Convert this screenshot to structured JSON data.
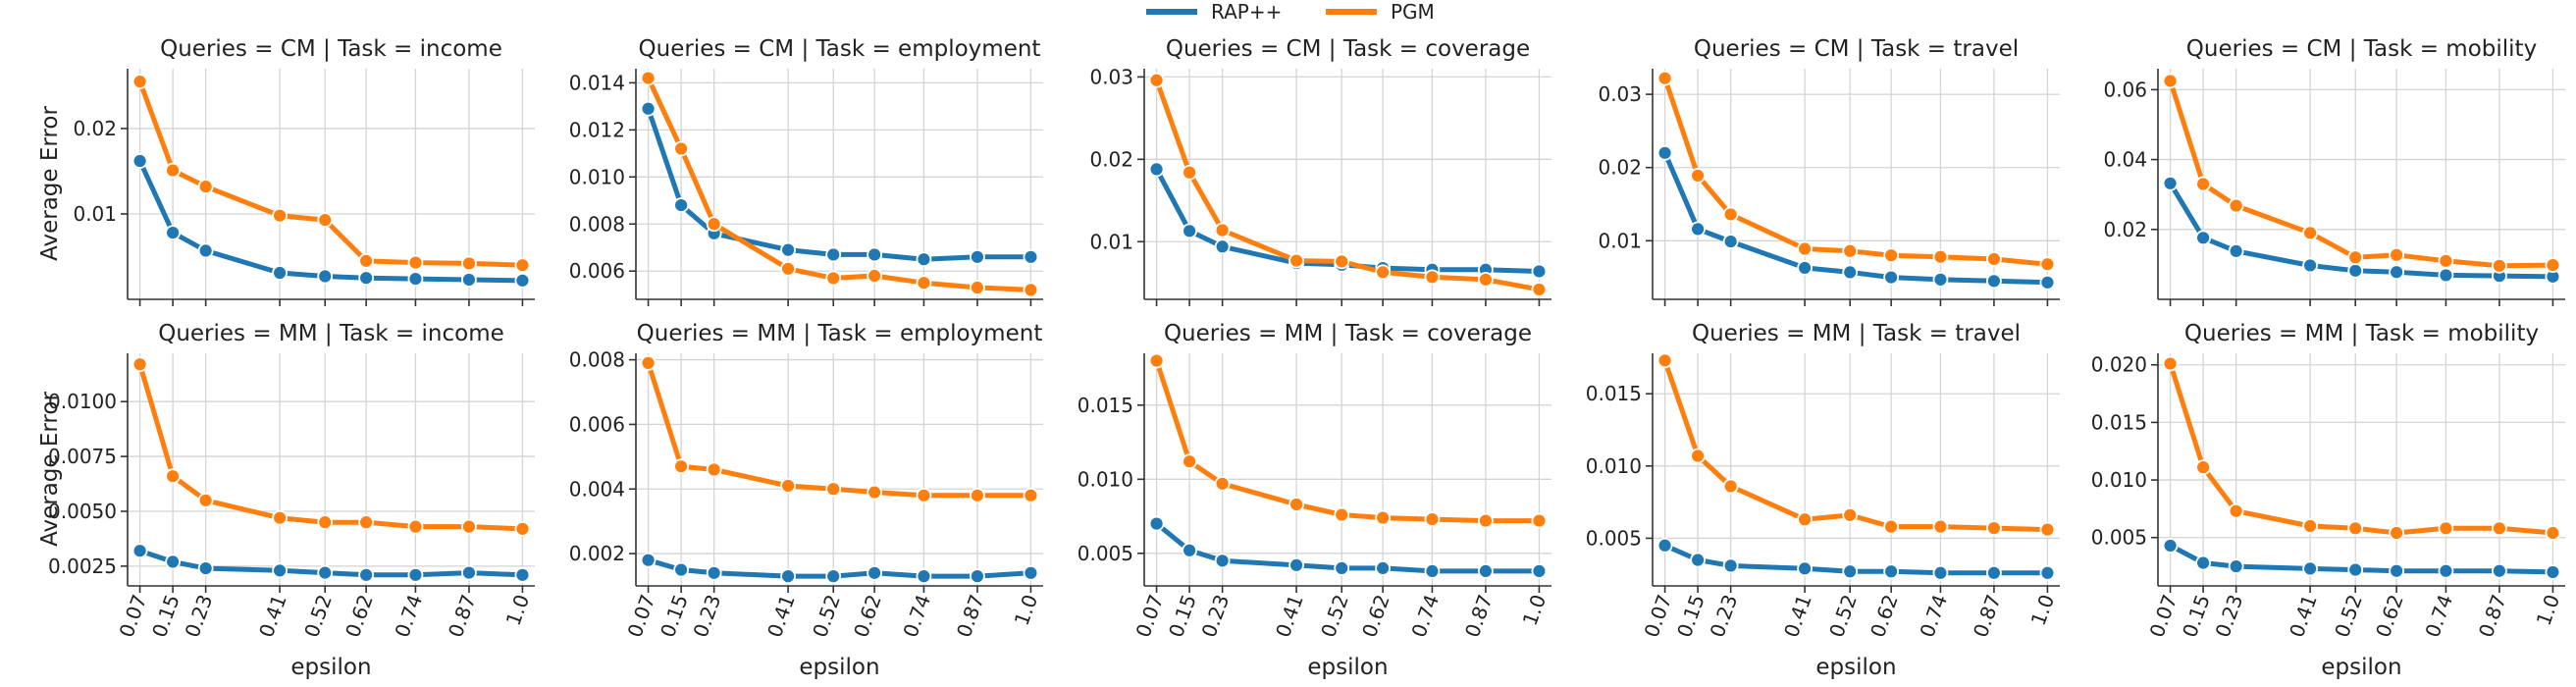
{
  "chart_data": {
    "type": "line",
    "legend": {
      "placement": "top-center",
      "entries": [
        {
          "name": "RAP++",
          "color": "#1f77b4"
        },
        {
          "name": "PGM",
          "color": "#ff7f0e"
        }
      ]
    },
    "x": [
      0.07,
      0.15,
      0.23,
      0.41,
      0.52,
      0.62,
      0.74,
      0.87,
      1.0
    ],
    "xtick_labels": [
      "0.07",
      "0.15",
      "0.23",
      "0.41",
      "0.52",
      "0.62",
      "0.74",
      "0.87",
      "1.0"
    ],
    "xlabel": "epsilon",
    "ylabel": "Average Error",
    "grid": true,
    "panels": [
      {
        "title": "Queries = CM | Task = income",
        "ylim": [
          0,
          0.027
        ],
        "yticks": [
          0.01,
          0.02
        ],
        "ytick_labels": [
          "0.01",
          "0.02"
        ],
        "series": [
          {
            "name": "RAP++",
            "values": [
              0.0162,
              0.0078,
              0.0057,
              0.0031,
              0.0027,
              0.0025,
              0.0024,
              0.0023,
              0.0022
            ]
          },
          {
            "name": "PGM",
            "values": [
              0.0255,
              0.0151,
              0.0132,
              0.0098,
              0.0093,
              0.0045,
              0.0043,
              0.0042,
              0.004
            ]
          }
        ]
      },
      {
        "title": "Queries = CM | Task = employment",
        "ylim": [
          0.0048,
          0.0146
        ],
        "yticks": [
          0.006,
          0.008,
          0.01,
          0.012,
          0.014
        ],
        "ytick_labels": [
          "0.006",
          "0.008",
          "0.010",
          "0.012",
          "0.014"
        ],
        "series": [
          {
            "name": "RAP++",
            "values": [
              0.0129,
              0.0088,
              0.0076,
              0.0069,
              0.0067,
              0.0067,
              0.0065,
              0.0066,
              0.0066
            ]
          },
          {
            "name": "PGM",
            "values": [
              0.0142,
              0.0112,
              0.008,
              0.0061,
              0.0057,
              0.0058,
              0.0055,
              0.0053,
              0.0052
            ]
          }
        ]
      },
      {
        "title": "Queries = CM | Task = coverage",
        "ylim": [
          0.003,
          0.031
        ],
        "yticks": [
          0.01,
          0.02,
          0.03
        ],
        "ytick_labels": [
          "0.01",
          "0.02",
          "0.03"
        ],
        "series": [
          {
            "name": "RAP++",
            "values": [
              0.0188,
              0.0113,
              0.0094,
              0.0074,
              0.0072,
              0.0068,
              0.0066,
              0.0066,
              0.0064
            ]
          },
          {
            "name": "PGM",
            "values": [
              0.0296,
              0.0184,
              0.0114,
              0.0077,
              0.0076,
              0.0063,
              0.0057,
              0.0054,
              0.0042
            ]
          }
        ]
      },
      {
        "title": "Queries = CM | Task = travel",
        "ylim": [
          0.002,
          0.0335
        ],
        "yticks": [
          0.01,
          0.02,
          0.03
        ],
        "ytick_labels": [
          "0.01",
          "0.02",
          "0.03"
        ],
        "series": [
          {
            "name": "RAP++",
            "values": [
              0.022,
              0.0116,
              0.0099,
              0.0063,
              0.0057,
              0.005,
              0.0047,
              0.0045,
              0.0043
            ]
          },
          {
            "name": "PGM",
            "values": [
              0.0322,
              0.0189,
              0.0136,
              0.0089,
              0.0086,
              0.008,
              0.0078,
              0.0075,
              0.0068
            ]
          }
        ]
      },
      {
        "title": "Queries = CM | Task = mobility",
        "ylim": [
          0,
          0.066
        ],
        "yticks": [
          0.02,
          0.04,
          0.06
        ],
        "ytick_labels": [
          "0.02",
          "0.04",
          "0.06"
        ],
        "series": [
          {
            "name": "RAP++",
            "values": [
              0.0332,
              0.0176,
              0.0138,
              0.0097,
              0.0082,
              0.0078,
              0.0069,
              0.0067,
              0.0065
            ]
          },
          {
            "name": "PGM",
            "values": [
              0.0625,
              0.033,
              0.0268,
              0.019,
              0.012,
              0.0127,
              0.011,
              0.0096,
              0.0098
            ]
          }
        ]
      },
      {
        "title": "Queries = MM | Task = income",
        "ylim": [
          0.0016,
          0.0122
        ],
        "yticks": [
          0.0025,
          0.005,
          0.0075,
          0.01
        ],
        "ytick_labels": [
          "0.0025",
          "0.0050",
          "0.0075",
          "0.0100"
        ],
        "series": [
          {
            "name": "RAP++",
            "values": [
              0.0032,
              0.0027,
              0.0024,
              0.0023,
              0.0022,
              0.0021,
              0.0021,
              0.0022,
              0.0021
            ]
          },
          {
            "name": "PGM",
            "values": [
              0.0117,
              0.0066,
              0.0055,
              0.0047,
              0.0045,
              0.0045,
              0.0043,
              0.0043,
              0.0042
            ]
          }
        ]
      },
      {
        "title": "Queries = MM | Task = employment",
        "ylim": [
          0.001,
          0.0082
        ],
        "yticks": [
          0.002,
          0.004,
          0.006,
          0.008
        ],
        "ytick_labels": [
          "0.002",
          "0.004",
          "0.006",
          "0.008"
        ],
        "series": [
          {
            "name": "RAP++",
            "values": [
              0.0018,
              0.0015,
              0.0014,
              0.0013,
              0.0013,
              0.0014,
              0.0013,
              0.0013,
              0.0014
            ]
          },
          {
            "name": "PGM",
            "values": [
              0.0079,
              0.0047,
              0.0046,
              0.0041,
              0.004,
              0.0039,
              0.0038,
              0.0038,
              0.0038
            ]
          }
        ]
      },
      {
        "title": "Queries = MM | Task = coverage",
        "ylim": [
          0.0028,
          0.0185
        ],
        "yticks": [
          0.005,
          0.01,
          0.015
        ],
        "ytick_labels": [
          "0.005",
          "0.010",
          "0.015"
        ],
        "series": [
          {
            "name": "RAP++",
            "values": [
              0.007,
              0.0052,
              0.0045,
              0.0042,
              0.004,
              0.004,
              0.0038,
              0.0038,
              0.0038
            ]
          },
          {
            "name": "PGM",
            "values": [
              0.018,
              0.0112,
              0.0097,
              0.0083,
              0.0076,
              0.0074,
              0.0073,
              0.0072,
              0.0072
            ]
          }
        ]
      },
      {
        "title": "Queries = MM | Task = travel",
        "ylim": [
          0.0017,
          0.0178
        ],
        "yticks": [
          0.005,
          0.01,
          0.015
        ],
        "ytick_labels": [
          "0.005",
          "0.010",
          "0.015"
        ],
        "series": [
          {
            "name": "RAP++",
            "values": [
              0.0045,
              0.0035,
              0.0031,
              0.0029,
              0.0027,
              0.0027,
              0.0026,
              0.0026,
              0.0026
            ]
          },
          {
            "name": "PGM",
            "values": [
              0.0173,
              0.0107,
              0.0086,
              0.0063,
              0.0066,
              0.0058,
              0.0058,
              0.0057,
              0.0056
            ]
          }
        ]
      },
      {
        "title": "Queries = MM | Task = mobility",
        "ylim": [
          0.0008,
          0.021
        ],
        "yticks": [
          0.005,
          0.01,
          0.015,
          0.02
        ],
        "ytick_labels": [
          "0.005",
          "0.010",
          "0.015",
          "0.020"
        ],
        "series": [
          {
            "name": "RAP++",
            "values": [
              0.0043,
              0.0028,
              0.0025,
              0.0023,
              0.0022,
              0.0021,
              0.0021,
              0.0021,
              0.002
            ]
          },
          {
            "name": "PGM",
            "values": [
              0.0201,
              0.0111,
              0.0073,
              0.006,
              0.0058,
              0.0054,
              0.0058,
              0.0058,
              0.0054
            ]
          }
        ]
      }
    ]
  }
}
